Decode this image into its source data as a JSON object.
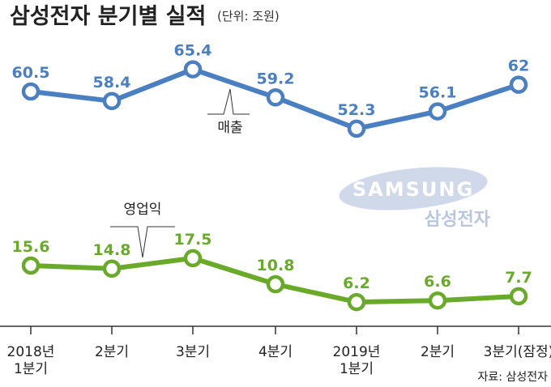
{
  "header": {
    "title": "삼성전자 분기별 실적",
    "unit": "(단위: 조원)"
  },
  "brand": {
    "logo_text": "SAMSUNG",
    "name_kr": "삼성전자"
  },
  "source": "자료: 삼성전자",
  "colors": {
    "revenue": "#4a7fc1",
    "operating_profit": "#6aaa2a",
    "logo": "#c9d3e6"
  },
  "chart_data": {
    "type": "line",
    "categories": [
      [
        "2018년",
        "1분기"
      ],
      [
        "2분기"
      ],
      [
        "3분기"
      ],
      [
        "4분기"
      ],
      [
        "2019년",
        "1분기"
      ],
      [
        "2분기"
      ],
      [
        "3분기(잠정)"
      ]
    ],
    "series": [
      {
        "name": "매출",
        "values": [
          60.5,
          58.4,
          65.4,
          59.2,
          52.3,
          56.1,
          62
        ],
        "labels": [
          "60.5",
          "58.4",
          "65.4",
          "59.2",
          "52.3",
          "56.1",
          "62"
        ]
      },
      {
        "name": "영업익",
        "values": [
          15.6,
          14.8,
          17.5,
          10.8,
          6.2,
          6.6,
          7.7
        ],
        "labels": [
          "15.6",
          "14.8",
          "17.5",
          "10.8",
          "6.2",
          "6.6",
          "7.7"
        ]
      }
    ],
    "title": "삼성전자 분기별 실적",
    "unit": "조원"
  }
}
